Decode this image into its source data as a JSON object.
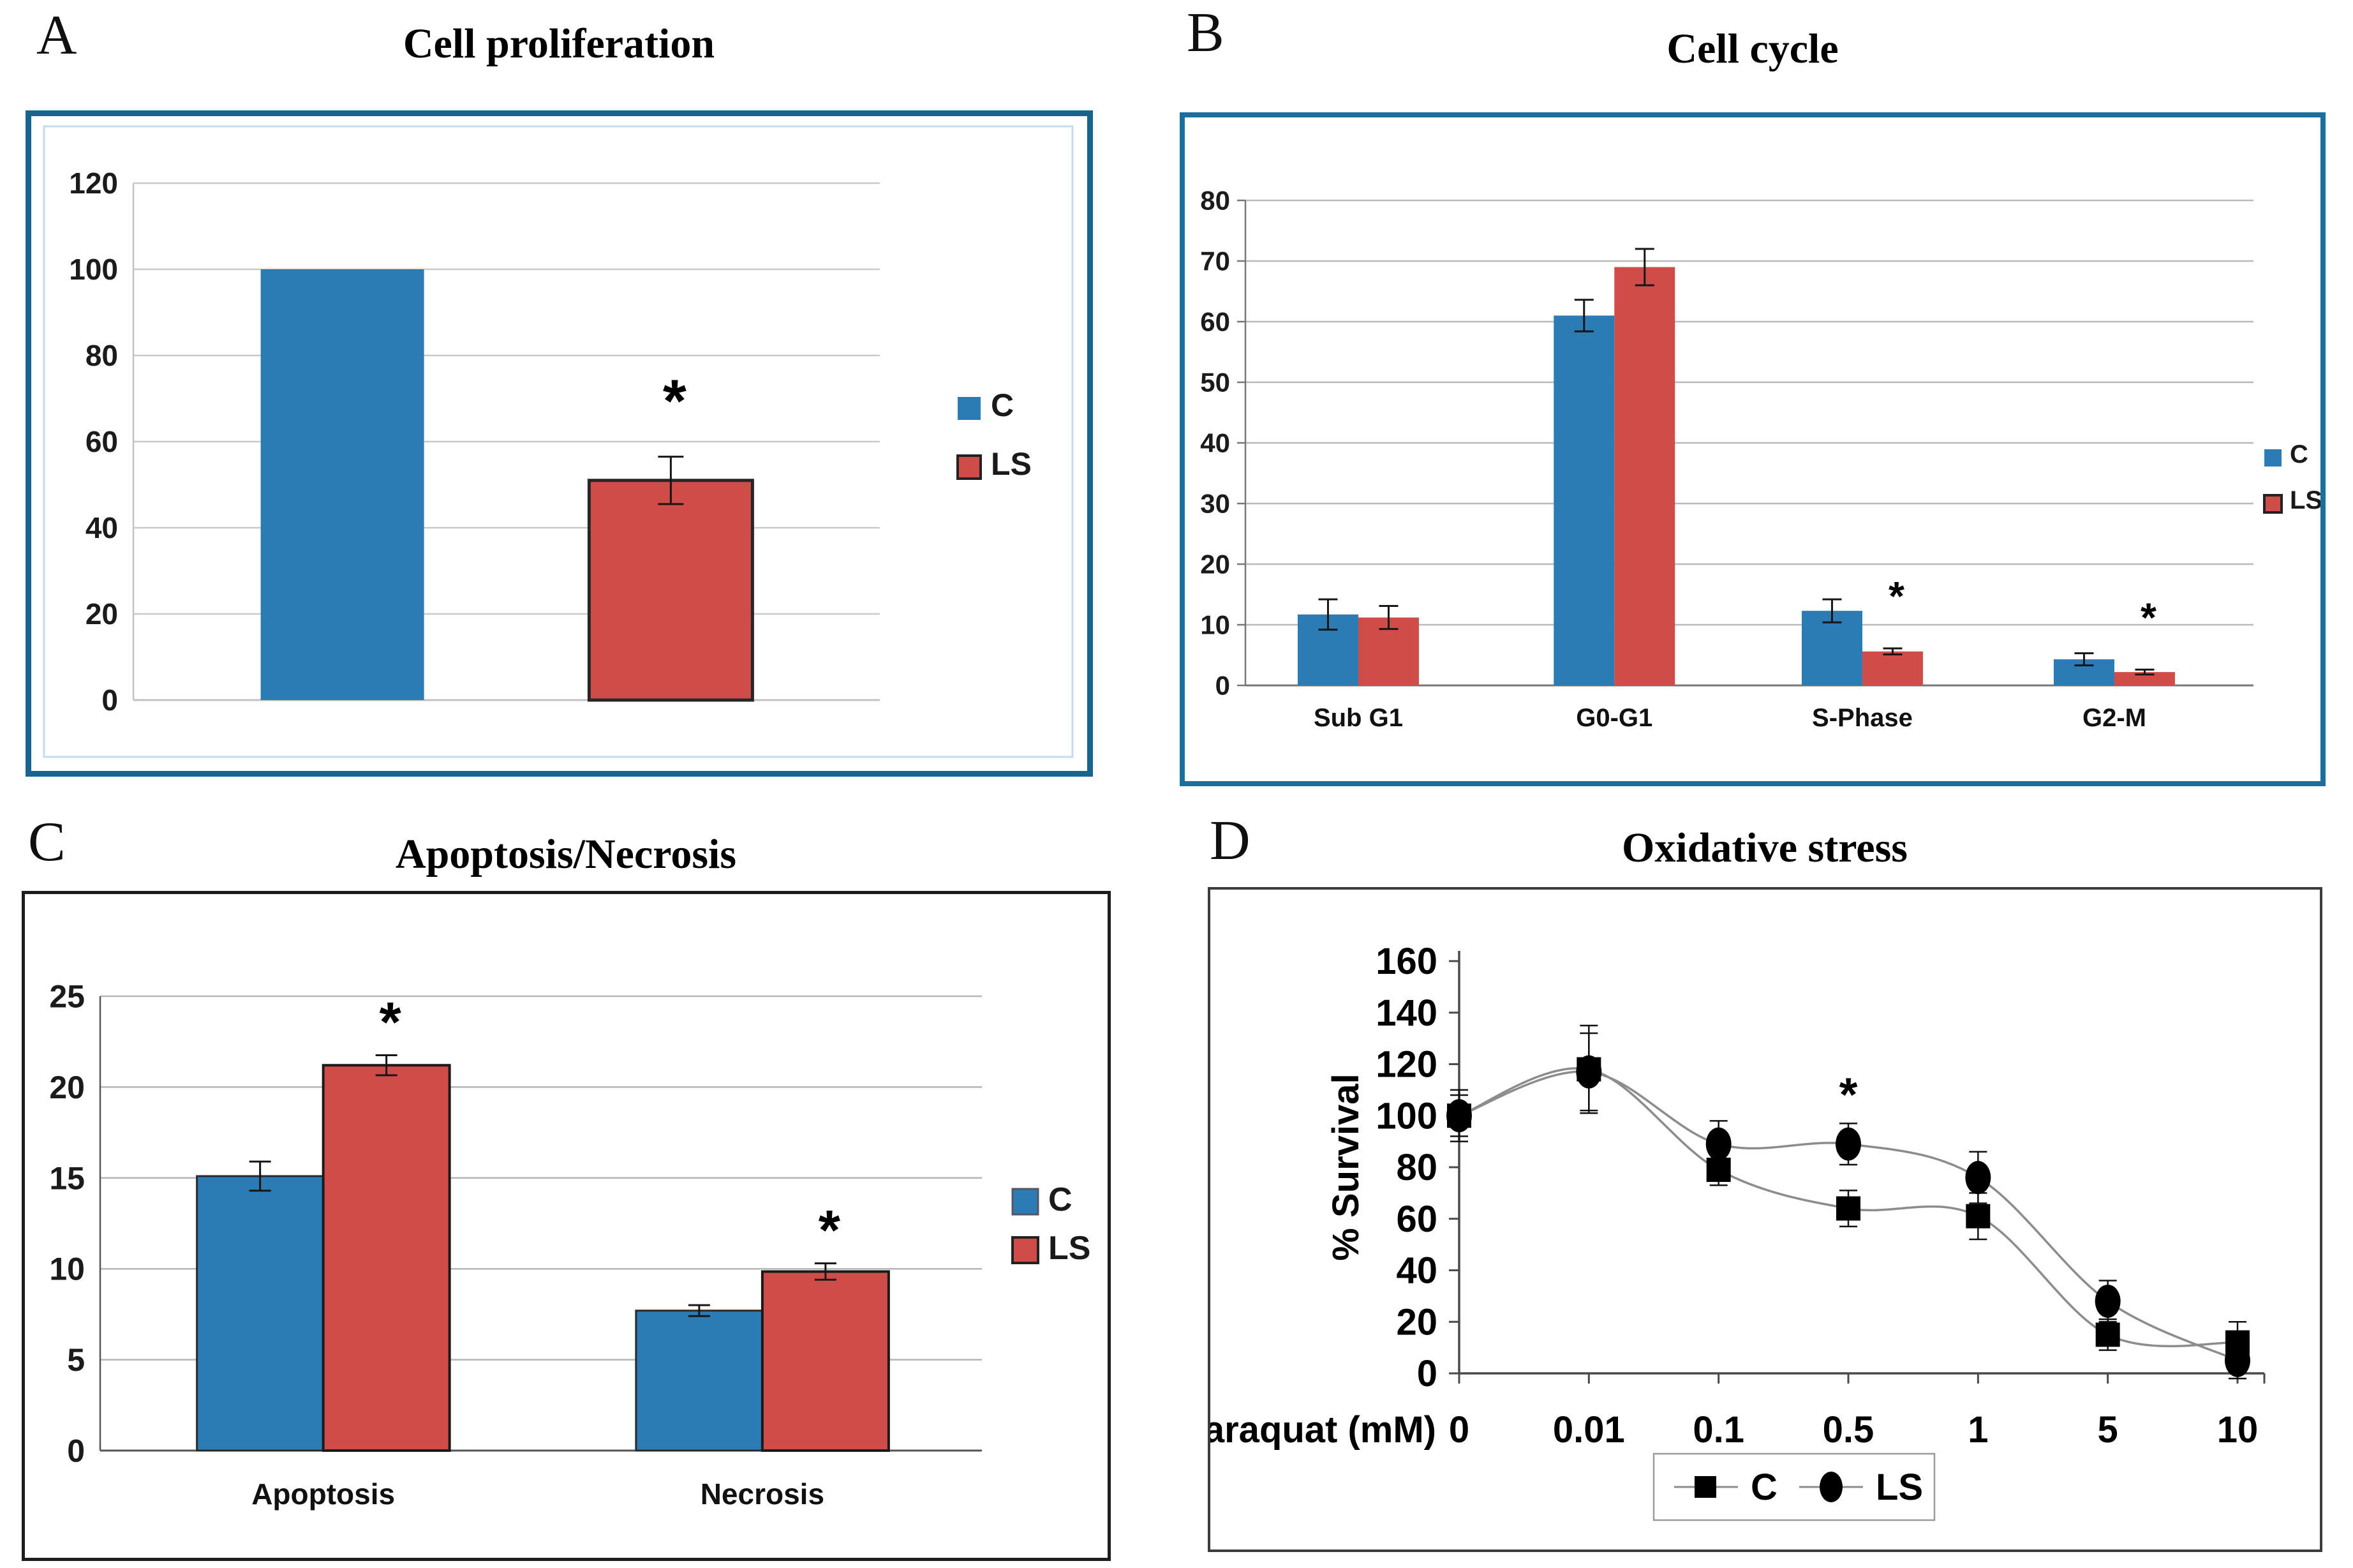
{
  "figure_labels": {
    "a_letter": "A",
    "b_letter": "B",
    "c_letter": "C",
    "d_letter": "D",
    "a_title": "Cell proliferation",
    "b_title": "Cell cycle",
    "c_title": "Apoptosis/Necrosis",
    "d_title": "Oxidative stress"
  },
  "legend": {
    "c_label": "C",
    "ls_label": "LS"
  },
  "colors": {
    "c_fill": "#2b7bb4",
    "ls_fill": "#d04c48",
    "ab_border": "#17658f",
    "cd_border": "#222222",
    "grid": "#c4c4c4",
    "axis_dark": "#6f6f6f",
    "line_gray": "#8c8c8c",
    "text": "#1b1b1b",
    "frame_a": "#c7dbee",
    "marker_black": "#000000"
  },
  "chart_data": [
    {
      "panel": "A",
      "type": "bar",
      "title": "Cell proliferation",
      "ylim": [
        0,
        120
      ],
      "ytick_step": 20,
      "categories": [
        ""
      ],
      "series": [
        {
          "name": "C",
          "values": [
            100
          ],
          "errors": [
            0
          ]
        },
        {
          "name": "LS",
          "values": [
            51
          ],
          "errors": [
            5.5
          ],
          "stars": [
            true
          ]
        }
      ],
      "legend_entries": [
        "C",
        "LS"
      ]
    },
    {
      "panel": "B",
      "type": "bar",
      "title": "Cell cycle",
      "ylim": [
        0,
        80
      ],
      "ytick_step": 10,
      "categories": [
        "Sub G1",
        "G0-G1",
        "S-Phase",
        "G2-M"
      ],
      "series": [
        {
          "name": "C",
          "values": [
            11.7,
            61,
            12.3,
            4.3
          ],
          "errors": [
            2.5,
            2.6,
            1.9,
            1.0
          ]
        },
        {
          "name": "LS",
          "values": [
            11.2,
            69,
            5.6,
            2.2
          ],
          "errors": [
            1.9,
            3.0,
            0.5,
            0.4
          ],
          "stars": [
            false,
            false,
            true,
            true
          ]
        }
      ],
      "legend_entries": [
        "C",
        "LS"
      ]
    },
    {
      "panel": "C",
      "type": "bar",
      "title": "Apoptosis/Necrosis",
      "ylim": [
        0,
        25
      ],
      "ytick_step": 5,
      "categories": [
        "Apoptosis",
        "Necrosis"
      ],
      "series": [
        {
          "name": "C",
          "values": [
            15.1,
            7.7
          ],
          "errors": [
            0.8,
            0.3
          ]
        },
        {
          "name": "LS",
          "values": [
            21.2,
            9.85
          ],
          "errors": [
            0.55,
            0.45
          ],
          "stars": [
            true,
            true
          ]
        }
      ],
      "legend_entries": [
        "C",
        "LS"
      ]
    },
    {
      "panel": "D",
      "type": "line",
      "title": "Oxidative stress",
      "xlabel": "Paraquat (mM)",
      "ylabel": "% Survival",
      "ylim": [
        0,
        160
      ],
      "ytick_step": 20,
      "x_categories": [
        "0",
        "0.01",
        "0.1",
        "0.5",
        "1",
        "5",
        "10"
      ],
      "series": [
        {
          "name": "C",
          "marker": "square",
          "values": [
            100,
            118,
            79,
            64,
            61,
            15,
            12
          ],
          "errors": [
            10,
            17,
            6,
            7,
            9,
            6,
            8
          ]
        },
        {
          "name": "LS",
          "marker": "circle",
          "values": [
            100,
            117,
            89,
            89,
            76,
            28,
            5
          ],
          "errors": [
            8,
            15,
            9,
            8,
            10,
            8,
            7
          ],
          "star_index": 3
        }
      ],
      "legend_entries": [
        "C",
        "LS"
      ]
    }
  ]
}
